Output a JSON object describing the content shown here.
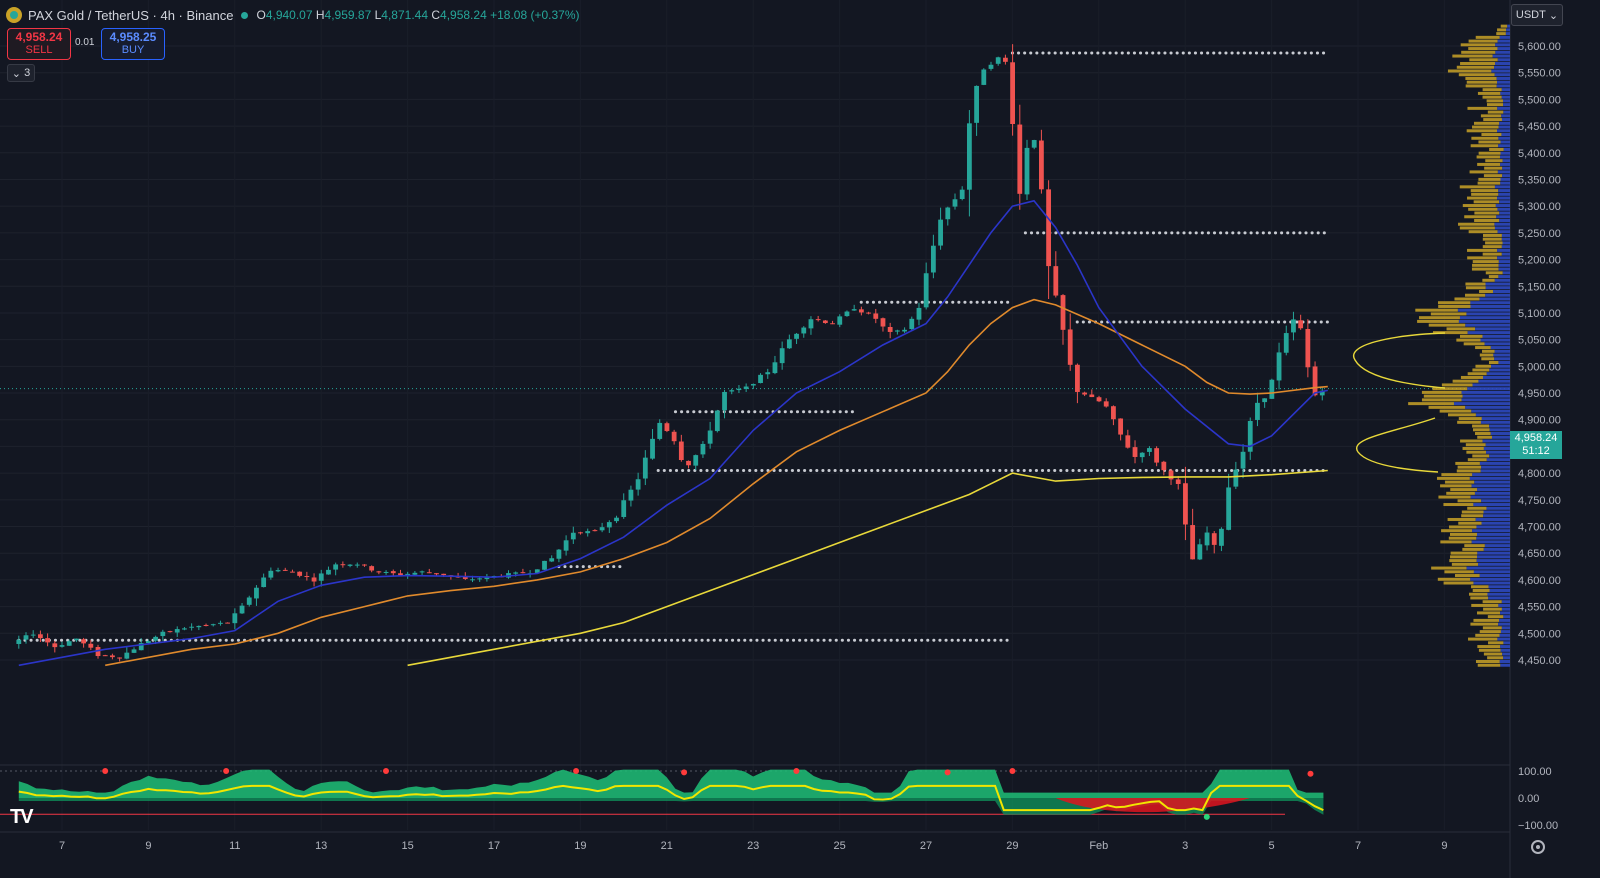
{
  "header": {
    "symbol": "PAX Gold / TetherUS · 4h · Binance",
    "o_label": "O",
    "o": "4,940.07",
    "h_label": "H",
    "h": "4,959.87",
    "l_label": "L",
    "l": "4,871.44",
    "c_label": "C",
    "c": "4,958.24",
    "change": "+18.08 (+0.37%)"
  },
  "trade": {
    "sell_price": "4,958.24",
    "sell_label": "SELL",
    "spread": "0.01",
    "buy_price": "4,958.25",
    "buy_label": "BUY"
  },
  "indicators_toggle": "3",
  "currency": "USDT",
  "last_price": {
    "value": "4,958.24",
    "countdown": "51:12"
  },
  "colors": {
    "background": "#131722",
    "up": "#26a69a",
    "down": "#ef5350",
    "ema_blue": "#2b35c9",
    "ema_orange": "#e08a2c",
    "ema_yellow": "#e8d83a",
    "volume_profile_gold": "#c9a227",
    "volume_profile_blue": "#2d49c0"
  },
  "chart_data": {
    "type": "candlestick",
    "ylim": [
      4430,
      5660
    ],
    "y_ticks": [
      "5,600.00",
      "5,550.00",
      "5,500.00",
      "5,450.00",
      "5,400.00",
      "5,350.00",
      "5,300.00",
      "5,250.00",
      "5,200.00",
      "5,150.00",
      "5,100.00",
      "5,050.00",
      "5,000.00",
      "4,950.00",
      "4,900.00",
      "4,850.00",
      "4,800.00",
      "4,750.00",
      "4,700.00",
      "4,650.00",
      "4,600.00",
      "4,550.00",
      "4,500.00",
      "4,450.00"
    ],
    "x_ticks": [
      "7",
      "9",
      "11",
      "13",
      "15",
      "17",
      "19",
      "21",
      "23",
      "25",
      "27",
      "29",
      "Feb",
      "3",
      "5",
      "7",
      "9"
    ],
    "oscillator_ticks": [
      "100.00",
      "0.00",
      "−100.00"
    ],
    "oscillator_range": [
      -100,
      100
    ],
    "price_path": [
      [
        6,
        4480
      ],
      [
        6.5,
        4500
      ],
      [
        7,
        4475
      ],
      [
        7.5,
        4490
      ],
      [
        8,
        4460
      ],
      [
        8.5,
        4455
      ],
      [
        9,
        4480
      ],
      [
        9.5,
        4500
      ],
      [
        10,
        4510
      ],
      [
        10.5,
        4515
      ],
      [
        11,
        4520
      ],
      [
        11.3,
        4545
      ],
      [
        11.6,
        4580
      ],
      [
        12,
        4620
      ],
      [
        12.5,
        4615
      ],
      [
        13,
        4600
      ],
      [
        13.5,
        4630
      ],
      [
        14,
        4630
      ],
      [
        14.5,
        4615
      ],
      [
        15,
        4610
      ],
      [
        15.5,
        4615
      ],
      [
        16,
        4610
      ],
      [
        16.5,
        4600
      ],
      [
        17,
        4605
      ],
      [
        17.5,
        4610
      ],
      [
        18,
        4615
      ],
      [
        18.5,
        4640
      ],
      [
        19,
        4690
      ],
      [
        19.5,
        4690
      ],
      [
        20,
        4720
      ],
      [
        20.5,
        4790
      ],
      [
        21,
        4895
      ],
      [
        21.3,
        4870
      ],
      [
        21.6,
        4810
      ],
      [
        22,
        4850
      ],
      [
        22.5,
        4950
      ],
      [
        23,
        4960
      ],
      [
        23.5,
        4990
      ],
      [
        24,
        5050
      ],
      [
        24.5,
        5090
      ],
      [
        25,
        5080
      ],
      [
        25.5,
        5110
      ],
      [
        26,
        5090
      ],
      [
        26.3,
        5060
      ],
      [
        26.7,
        5070
      ],
      [
        27,
        5110
      ],
      [
        27.2,
        5180
      ],
      [
        27.5,
        5280
      ],
      [
        28,
        5330
      ],
      [
        28.2,
        5480
      ],
      [
        28.5,
        5560
      ],
      [
        28.9,
        5580
      ],
      [
        29.1,
        5560
      ],
      [
        29.3,
        5300
      ],
      [
        29.6,
        5470
      ],
      [
        29.8,
        5350
      ],
      [
        30,
        5180
      ],
      [
        30.3,
        5080
      ],
      [
        30.6,
        4960
      ],
      [
        31,
        4940
      ],
      [
        31.3,
        4930
      ],
      [
        31.6,
        4880
      ],
      [
        32,
        4830
      ],
      [
        32.3,
        4850
      ],
      [
        32.6,
        4810
      ],
      [
        33,
        4780
      ],
      [
        33.2,
        4680
      ],
      [
        33.4,
        4620
      ],
      [
        33.6,
        4700
      ],
      [
        33.9,
        4650
      ],
      [
        34.2,
        4790
      ],
      [
        34.5,
        4840
      ],
      [
        34.8,
        4930
      ],
      [
        35.1,
        4950
      ],
      [
        35.4,
        5040
      ],
      [
        35.7,
        5090
      ],
      [
        35.9,
        5060
      ],
      [
        36.1,
        4940
      ],
      [
        36.3,
        4958
      ]
    ],
    "ema_blue": [
      [
        6,
        4440
      ],
      [
        8,
        4470
      ],
      [
        10,
        4490
      ],
      [
        11,
        4505
      ],
      [
        12,
        4560
      ],
      [
        13,
        4590
      ],
      [
        14,
        4605
      ],
      [
        15,
        4608
      ],
      [
        16,
        4607
      ],
      [
        17,
        4605
      ],
      [
        18,
        4612
      ],
      [
        19,
        4640
      ],
      [
        20,
        4680
      ],
      [
        21,
        4740
      ],
      [
        22,
        4790
      ],
      [
        23,
        4880
      ],
      [
        24,
        4950
      ],
      [
        25,
        4990
      ],
      [
        26,
        5040
      ],
      [
        27,
        5080
      ],
      [
        27.5,
        5130
      ],
      [
        28,
        5190
      ],
      [
        28.5,
        5250
      ],
      [
        29,
        5300
      ],
      [
        29.5,
        5310
      ],
      [
        30,
        5260
      ],
      [
        30.5,
        5190
      ],
      [
        31,
        5110
      ],
      [
        32,
        5000
      ],
      [
        33,
        4920
      ],
      [
        34,
        4855
      ],
      [
        34.5,
        4850
      ],
      [
        35,
        4870
      ],
      [
        36,
        4950
      ],
      [
        36.3,
        4955
      ]
    ],
    "ema_orange": [
      [
        8,
        4440
      ],
      [
        10,
        4470
      ],
      [
        11,
        4480
      ],
      [
        12,
        4500
      ],
      [
        13,
        4530
      ],
      [
        14,
        4550
      ],
      [
        15,
        4570
      ],
      [
        16,
        4580
      ],
      [
        17,
        4588
      ],
      [
        18,
        4600
      ],
      [
        19,
        4615
      ],
      [
        20,
        4640
      ],
      [
        21,
        4670
      ],
      [
        22,
        4715
      ],
      [
        23,
        4780
      ],
      [
        24,
        4840
      ],
      [
        25,
        4880
      ],
      [
        26,
        4915
      ],
      [
        27,
        4950
      ],
      [
        27.5,
        4990
      ],
      [
        28,
        5040
      ],
      [
        28.5,
        5080
      ],
      [
        29,
        5110
      ],
      [
        29.5,
        5125
      ],
      [
        30,
        5115
      ],
      [
        31,
        5080
      ],
      [
        32,
        5040
      ],
      [
        33,
        5000
      ],
      [
        33.5,
        4970
      ],
      [
        34,
        4950
      ],
      [
        34.5,
        4948
      ],
      [
        35,
        4950
      ],
      [
        36,
        4960
      ],
      [
        36.3,
        4962
      ]
    ],
    "ema_yellow": [
      [
        15,
        4440
      ],
      [
        17,
        4470
      ],
      [
        19,
        4500
      ],
      [
        20,
        4520
      ],
      [
        21,
        4550
      ],
      [
        22,
        4580
      ],
      [
        23,
        4610
      ],
      [
        24,
        4640
      ],
      [
        25,
        4670
      ],
      [
        26,
        4700
      ],
      [
        27,
        4730
      ],
      [
        28,
        4760
      ],
      [
        28.5,
        4780
      ],
      [
        29,
        4800
      ],
      [
        30,
        4785
      ],
      [
        31,
        4790
      ],
      [
        32,
        4792
      ],
      [
        33,
        4793
      ],
      [
        34,
        4793
      ],
      [
        35,
        4797
      ],
      [
        36,
        4803
      ],
      [
        36.3,
        4805
      ]
    ],
    "levels": [
      {
        "price": 5587,
        "from": 29,
        "to": 36.3
      },
      {
        "price": 5250,
        "from": 29.3,
        "to": 36.3
      },
      {
        "price": 5083,
        "from": 30.5,
        "to": 36.3
      },
      {
        "price": 5120,
        "from": 25.5,
        "to": 29
      },
      {
        "price": 4915,
        "from": 21.2,
        "to": 25.4
      },
      {
        "price": 4805,
        "from": 20.8,
        "to": 36.3
      },
      {
        "price": 4625,
        "from": 18.5,
        "to": 20
      },
      {
        "price": 4487,
        "from": 6,
        "to": 29
      }
    ]
  }
}
